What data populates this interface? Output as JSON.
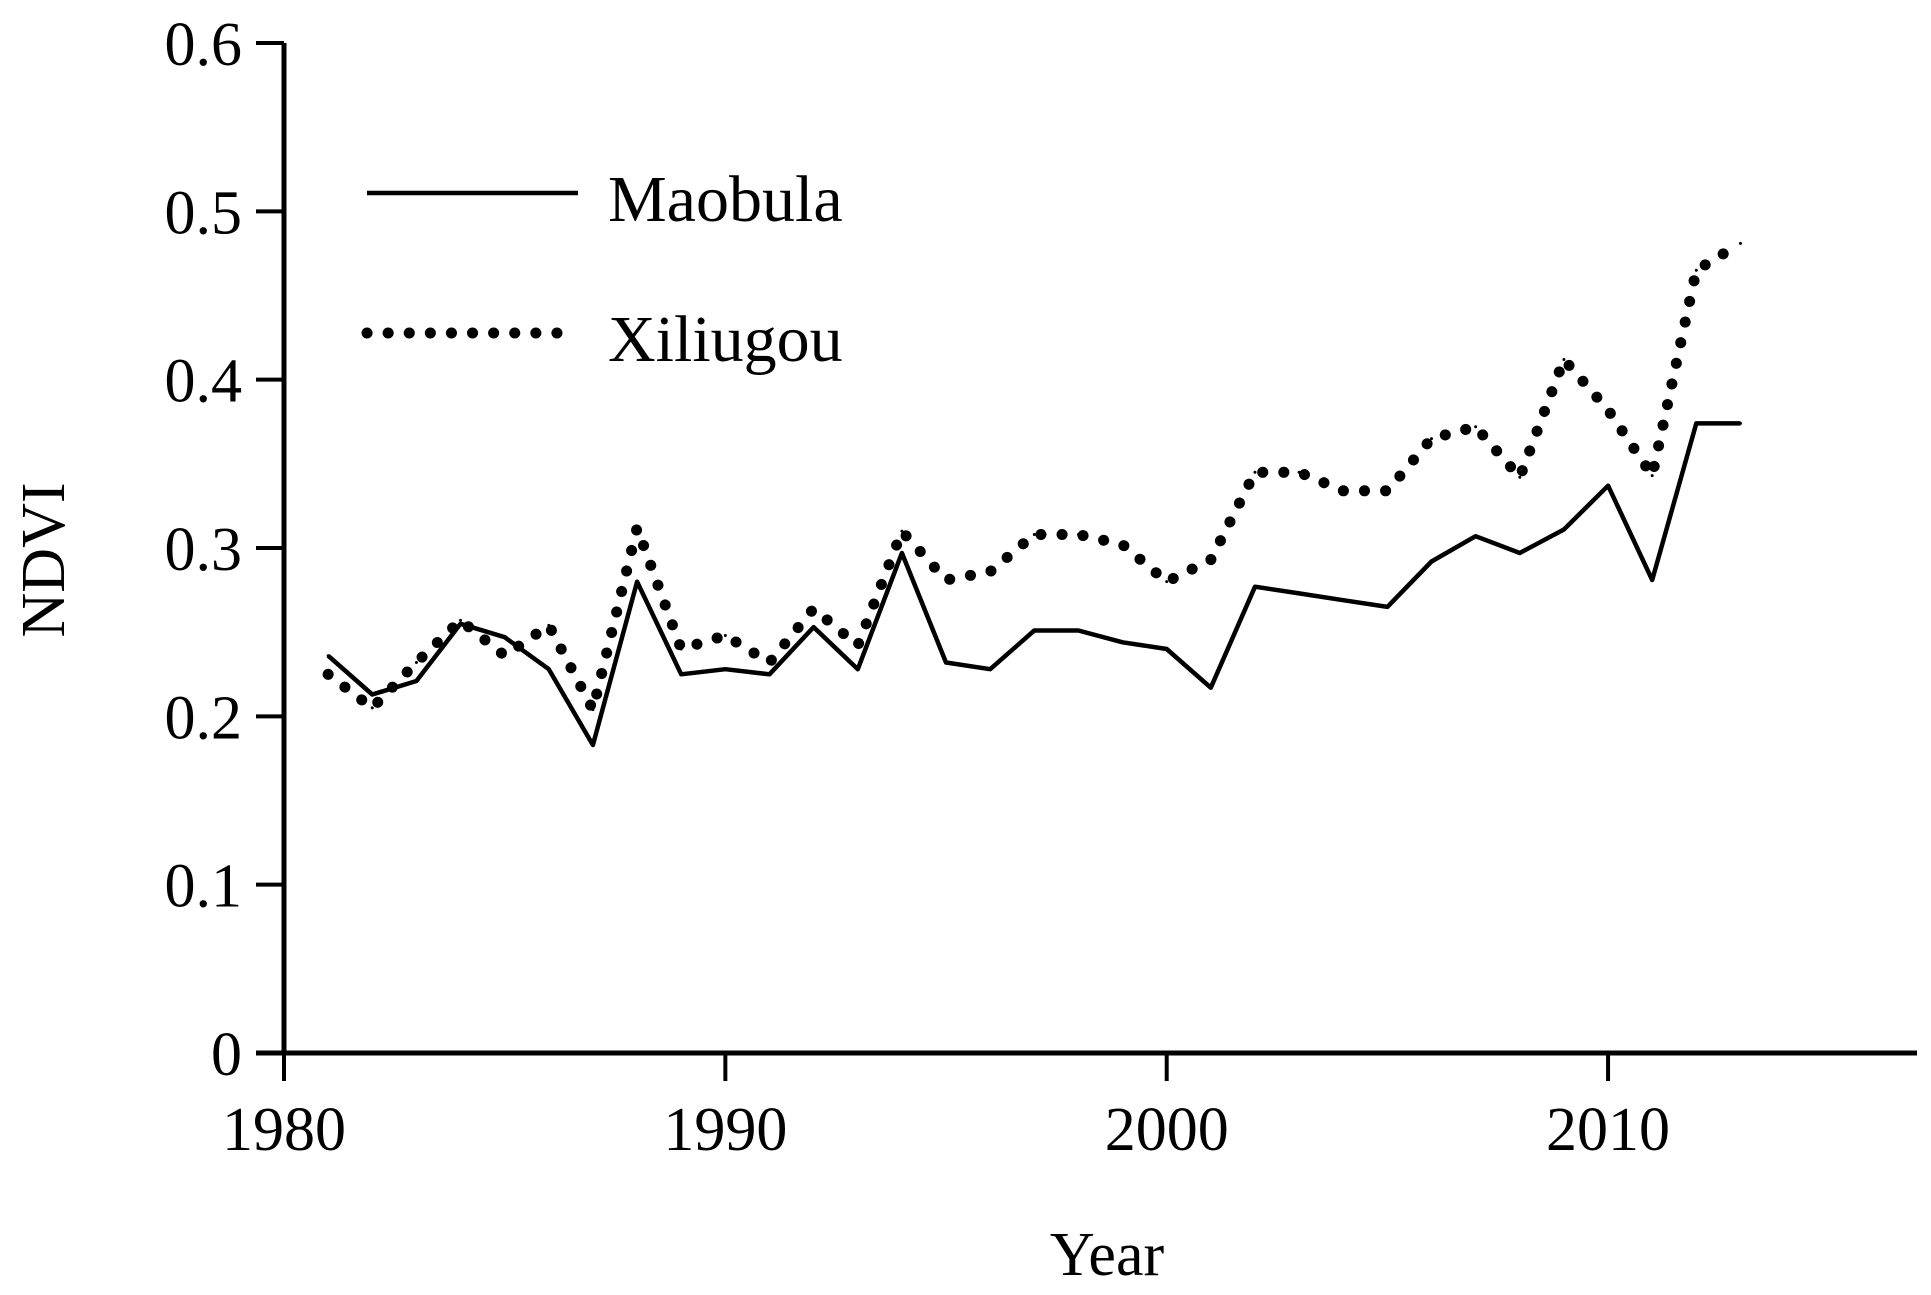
{
  "chart_data": {
    "type": "line",
    "title": "",
    "xlabel": "Year",
    "ylabel": "NDVI",
    "xlim": [
      1980,
      2017
    ],
    "ylim": [
      0,
      0.6
    ],
    "x_ticks": [
      {
        "value": 1980,
        "label": "1980"
      },
      {
        "value": 1990,
        "label": "1990"
      },
      {
        "value": 2000,
        "label": "2000"
      },
      {
        "value": 2010,
        "label": "2010"
      }
    ],
    "y_ticks": [
      {
        "value": 0,
        "label": "0"
      },
      {
        "value": 0.1,
        "label": "0.1"
      },
      {
        "value": 0.2,
        "label": "0.2"
      },
      {
        "value": 0.3,
        "label": "0.3"
      },
      {
        "value": 0.4,
        "label": "0.4"
      },
      {
        "value": 0.5,
        "label": "0.5"
      },
      {
        "value": 0.6,
        "label": "0.6"
      }
    ],
    "grid": false,
    "legend_position": "top-left",
    "x": [
      1981,
      1982,
      1983,
      1984,
      1985,
      1986,
      1987,
      1988,
      1989,
      1990,
      1991,
      1992,
      1993,
      1994,
      1995,
      1996,
      1997,
      1998,
      1999,
      2000,
      2001,
      2002,
      2003,
      2004,
      2005,
      2006,
      2007,
      2008,
      2009,
      2010,
      2011,
      2012,
      2013
    ],
    "series": [
      {
        "name": "Maobula",
        "style": "solid",
        "values": [
          0.236,
          0.213,
          0.221,
          0.255,
          0.247,
          0.228,
          0.183,
          0.28,
          0.225,
          0.228,
          0.225,
          0.253,
          0.228,
          0.297,
          0.232,
          0.228,
          0.251,
          0.251,
          0.244,
          0.24,
          0.217,
          0.277,
          0.273,
          0.269,
          0.265,
          0.292,
          0.307,
          0.297,
          0.311,
          0.337,
          0.281,
          0.374,
          0.374
        ]
      },
      {
        "name": "Xiliugou",
        "style": "dotted",
        "values": [
          0.225,
          0.205,
          0.232,
          0.257,
          0.236,
          0.254,
          0.204,
          0.312,
          0.24,
          0.248,
          0.232,
          0.264,
          0.242,
          0.31,
          0.281,
          0.286,
          0.308,
          0.308,
          0.302,
          0.28,
          0.293,
          0.345,
          0.345,
          0.334,
          0.334,
          0.365,
          0.372,
          0.342,
          0.412,
          0.382,
          0.343,
          0.465,
          0.481
        ]
      }
    ]
  }
}
